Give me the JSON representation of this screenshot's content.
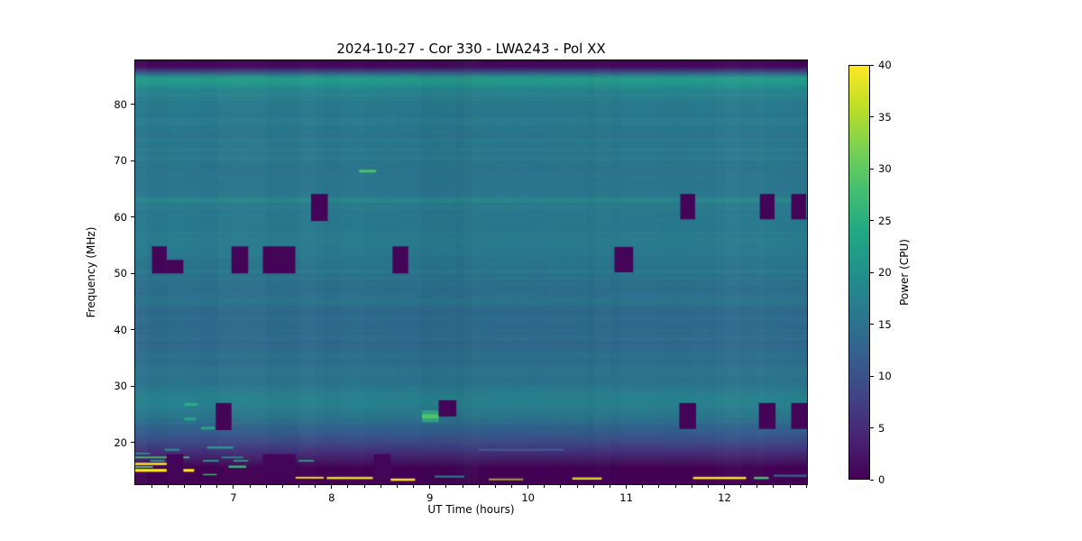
{
  "chart_data": {
    "type": "heatmap",
    "title": "2024-10-27 - Cor 330 - LWA243 - Pol XX",
    "xlabel": "UT Time (hours)",
    "ylabel": "Frequency (MHz)",
    "xlim": [
      6.0,
      12.84
    ],
    "ylim": [
      12.6,
      87.8
    ],
    "x_major_ticks": [
      7,
      8,
      9,
      10,
      11,
      12
    ],
    "x_minor_divisions_per_hour": 6,
    "y_major_ticks": [
      20,
      30,
      40,
      50,
      60,
      70,
      80
    ],
    "grid": false,
    "legend": "none",
    "colorbar": {
      "label": "Power (CPU)",
      "ticks": [
        0,
        5,
        10,
        15,
        20,
        25,
        30,
        35,
        40
      ],
      "vmin": 0,
      "vmax": 40,
      "colormap": "viridis",
      "gradient": [
        [
          0.0,
          "#440154"
        ],
        [
          0.1,
          "#482475"
        ],
        [
          0.2,
          "#414487"
        ],
        [
          0.3,
          "#355f8d"
        ],
        [
          0.4,
          "#2a788e"
        ],
        [
          0.5,
          "#21918c"
        ],
        [
          0.6,
          "#22a884"
        ],
        [
          0.7,
          "#44bf70"
        ],
        [
          0.8,
          "#7ad151"
        ],
        [
          0.9,
          "#bddf26"
        ],
        [
          1.0,
          "#fde725"
        ]
      ]
    },
    "background_profile": [
      [
        87.8,
        "#450457"
      ],
      [
        86.7,
        "#46085c"
      ],
      [
        86.0,
        "#3f3a7d"
      ],
      [
        85.2,
        "#2f7a8c"
      ],
      [
        84.6,
        "#259d88"
      ],
      [
        83.6,
        "#23968b"
      ],
      [
        82.5,
        "#26858e"
      ],
      [
        81.4,
        "#2a7f8e"
      ],
      [
        78.8,
        "#29798e"
      ],
      [
        72.8,
        "#2b798e"
      ],
      [
        65.2,
        "#2b768e"
      ],
      [
        57.7,
        "#297b8e"
      ],
      [
        50.2,
        "#2a778e"
      ],
      [
        48.9,
        "#2d718e"
      ],
      [
        41.2,
        "#306a8e"
      ],
      [
        35.2,
        "#2e6f8e"
      ],
      [
        29.9,
        "#2b768e"
      ],
      [
        27.6,
        "#27838d"
      ],
      [
        25.4,
        "#2a7a8e"
      ],
      [
        23.5,
        "#2e6d8e"
      ],
      [
        21.6,
        "#36598c"
      ],
      [
        20.0,
        "#3e4a85"
      ],
      [
        18.4,
        "#44307b"
      ],
      [
        16.8,
        "#441a64"
      ],
      [
        15.5,
        "#440154"
      ],
      [
        12.6,
        "#440154"
      ]
    ],
    "flagged_block_color": "#440458",
    "flagged_blocks": [
      {
        "t": [
          7.79,
          7.96
        ],
        "f": [
          59.3,
          64.1
        ]
      },
      {
        "t": [
          11.55,
          11.7
        ],
        "f": [
          59.6,
          64.1
        ]
      },
      {
        "t": [
          12.36,
          12.51
        ],
        "f": [
          59.6,
          64.1
        ]
      },
      {
        "t": [
          12.68,
          12.83
        ],
        "f": [
          59.6,
          64.1
        ]
      },
      {
        "t": [
          6.17,
          6.32
        ],
        "f": [
          50.0,
          54.8
        ]
      },
      {
        "t": [
          6.32,
          6.49
        ],
        "f": [
          50.0,
          52.4
        ]
      },
      {
        "t": [
          6.98,
          7.15
        ],
        "f": [
          50.0,
          54.8
        ]
      },
      {
        "t": [
          7.3,
          7.63
        ],
        "f": [
          50.0,
          54.8
        ]
      },
      {
        "t": [
          8.62,
          8.78
        ],
        "f": [
          50.0,
          54.8
        ]
      },
      {
        "t": [
          10.88,
          11.07
        ],
        "f": [
          50.2,
          54.7
        ]
      },
      {
        "t": [
          6.82,
          6.98
        ],
        "f": [
          22.2,
          27.0
        ]
      },
      {
        "t": [
          9.09,
          9.27
        ],
        "f": [
          24.6,
          27.5
        ]
      },
      {
        "t": [
          11.54,
          11.71
        ],
        "f": [
          22.4,
          27.0
        ]
      },
      {
        "t": [
          12.35,
          12.52
        ],
        "f": [
          22.4,
          27.0
        ]
      },
      {
        "t": [
          12.68,
          12.84
        ],
        "f": [
          22.4,
          27.0
        ]
      },
      {
        "t": [
          6.32,
          6.49
        ],
        "f": [
          13.4,
          17.9
        ]
      },
      {
        "t": [
          7.3,
          7.63
        ],
        "f": [
          13.4,
          17.9
        ]
      },
      {
        "t": [
          8.43,
          8.6
        ],
        "f": [
          13.4,
          17.9
        ]
      }
    ],
    "h_bands": [
      {
        "f": [
          73.9,
          74.8
        ],
        "c": "#2d6d8e",
        "a": 0.5
      },
      {
        "f": [
          62.5,
          63.6
        ],
        "c": "#27928b",
        "a": 0.5
      },
      {
        "f": [
          56.0,
          56.8
        ],
        "c": "#2b828d",
        "a": 0.35
      },
      {
        "f": [
          44.6,
          45.7
        ],
        "c": "#28838c",
        "a": 0.4
      },
      {
        "f": [
          36.9,
          38.0
        ],
        "c": "#33628d",
        "a": 0.45
      },
      {
        "f": [
          34.2,
          34.8
        ],
        "c": "#32658d",
        "a": 0.3
      },
      {
        "f": [
          24.3,
          25.1
        ],
        "c": "#2a8189",
        "a": 0.4
      }
    ],
    "v_bands": [
      {
        "t": [
          6.0,
          6.12
        ],
        "c": "#aee8d8",
        "a": 0.035
      },
      {
        "t": [
          7.92,
          8.08
        ],
        "c": "#123c58",
        "a": 0.03
      },
      {
        "t": [
          8.91,
          9.26
        ],
        "c": "#123c58",
        "a": 0.05
      },
      {
        "t": [
          9.26,
          9.42
        ],
        "c": "#123c58",
        "a": 0.1
      },
      {
        "t": [
          9.42,
          9.5
        ],
        "c": "#123c58",
        "a": 0.05
      },
      {
        "t": [
          10.6,
          10.95
        ],
        "c": "#123c58",
        "a": 0.025
      },
      {
        "t": [
          11.9,
          12.4
        ],
        "c": "#d8f0e8",
        "a": 0.02
      }
    ],
    "streaks": [
      {
        "t": [
          8.28,
          8.45
        ],
        "f": [
          67.9,
          68.4
        ],
        "c": "#4ac16d"
      },
      {
        "t": [
          8.92,
          9.09
        ],
        "f": [
          23.6,
          25.7
        ],
        "c": "#2ea181"
      },
      {
        "t": [
          8.92,
          9.09
        ],
        "f": [
          24.3,
          25.0
        ],
        "c": "#52c569"
      },
      {
        "t": [
          6.5,
          6.63
        ],
        "f": [
          26.5,
          27.0
        ],
        "c": "#2dae81"
      },
      {
        "t": [
          6.5,
          6.62
        ],
        "f": [
          23.9,
          24.4
        ],
        "c": "#28a584"
      },
      {
        "t": [
          6.67,
          6.81
        ],
        "f": [
          22.3,
          22.8
        ],
        "c": "#28a584"
      },
      {
        "t": [
          6.73,
          7.0
        ],
        "f": [
          18.9,
          19.3
        ],
        "c": "#249890"
      },
      {
        "t": [
          6.3,
          6.45
        ],
        "f": [
          18.5,
          18.9
        ],
        "c": "#2a8a8e"
      },
      {
        "t": [
          9.49,
          10.36
        ],
        "f": [
          18.5,
          18.9
        ],
        "c": "#45709d",
        "a": 0.55
      },
      {
        "t": [
          6.0,
          6.15
        ],
        "f": [
          17.9,
          18.2
        ],
        "c": "#2a8a8e"
      },
      {
        "t": [
          6.0,
          6.55
        ],
        "f": [
          17.2,
          17.5
        ],
        "c": "#48c16e"
      },
      {
        "t": [
          6.88,
          7.1
        ],
        "f": [
          17.2,
          17.5
        ],
        "c": "#2a8a8e"
      },
      {
        "t": [
          6.15,
          6.3
        ],
        "f": [
          16.6,
          16.9
        ],
        "c": "#259b89"
      },
      {
        "t": [
          6.69,
          6.85
        ],
        "f": [
          16.6,
          16.9
        ],
        "c": "#259b89"
      },
      {
        "t": [
          7.0,
          7.15
        ],
        "f": [
          16.6,
          16.9
        ],
        "c": "#259b89"
      },
      {
        "t": [
          7.66,
          7.82
        ],
        "f": [
          16.6,
          16.9
        ],
        "c": "#259b89"
      },
      {
        "t": [
          6.0,
          6.34
        ],
        "f": [
          16.0,
          16.4
        ],
        "c": "#fde725"
      },
      {
        "t": [
          6.0,
          6.18
        ],
        "f": [
          15.5,
          15.8
        ],
        "c": "#53c568"
      },
      {
        "t": [
          6.95,
          7.13
        ],
        "f": [
          15.5,
          15.9
        ],
        "c": "#35b779"
      },
      {
        "t": [
          6.0,
          6.6
        ],
        "f": [
          14.8,
          15.3
        ],
        "c": "#fde725"
      },
      {
        "t": [
          6.69,
          6.83
        ],
        "f": [
          14.2,
          14.4
        ],
        "c": "#48c16e"
      },
      {
        "t": [
          7.63,
          7.92
        ],
        "f": [
          13.6,
          13.9
        ],
        "c": "#fde725"
      },
      {
        "t": [
          7.95,
          8.42
        ],
        "f": [
          13.5,
          13.9
        ],
        "c": "#e8dc20"
      },
      {
        "t": [
          8.6,
          8.85
        ],
        "f": [
          13.2,
          13.6
        ],
        "c": "#fde725"
      },
      {
        "t": [
          9.05,
          9.35
        ],
        "f": [
          13.8,
          14.1
        ],
        "c": "#2a8a8e"
      },
      {
        "t": [
          9.6,
          9.95
        ],
        "f": [
          13.3,
          13.6
        ],
        "c": "#c8d822",
        "a": 0.8
      },
      {
        "t": [
          10.45,
          10.75
        ],
        "f": [
          13.4,
          13.8
        ],
        "c": "#d8d422"
      },
      {
        "t": [
          11.68,
          12.22
        ],
        "f": [
          13.5,
          13.9
        ],
        "c": "#fde725"
      },
      {
        "t": [
          12.3,
          12.45
        ],
        "f": [
          13.5,
          13.9
        ],
        "c": "#48c16e"
      },
      {
        "t": [
          12.5,
          12.84
        ],
        "f": [
          13.9,
          14.3
        ],
        "c": "#3a5b8c"
      }
    ]
  }
}
